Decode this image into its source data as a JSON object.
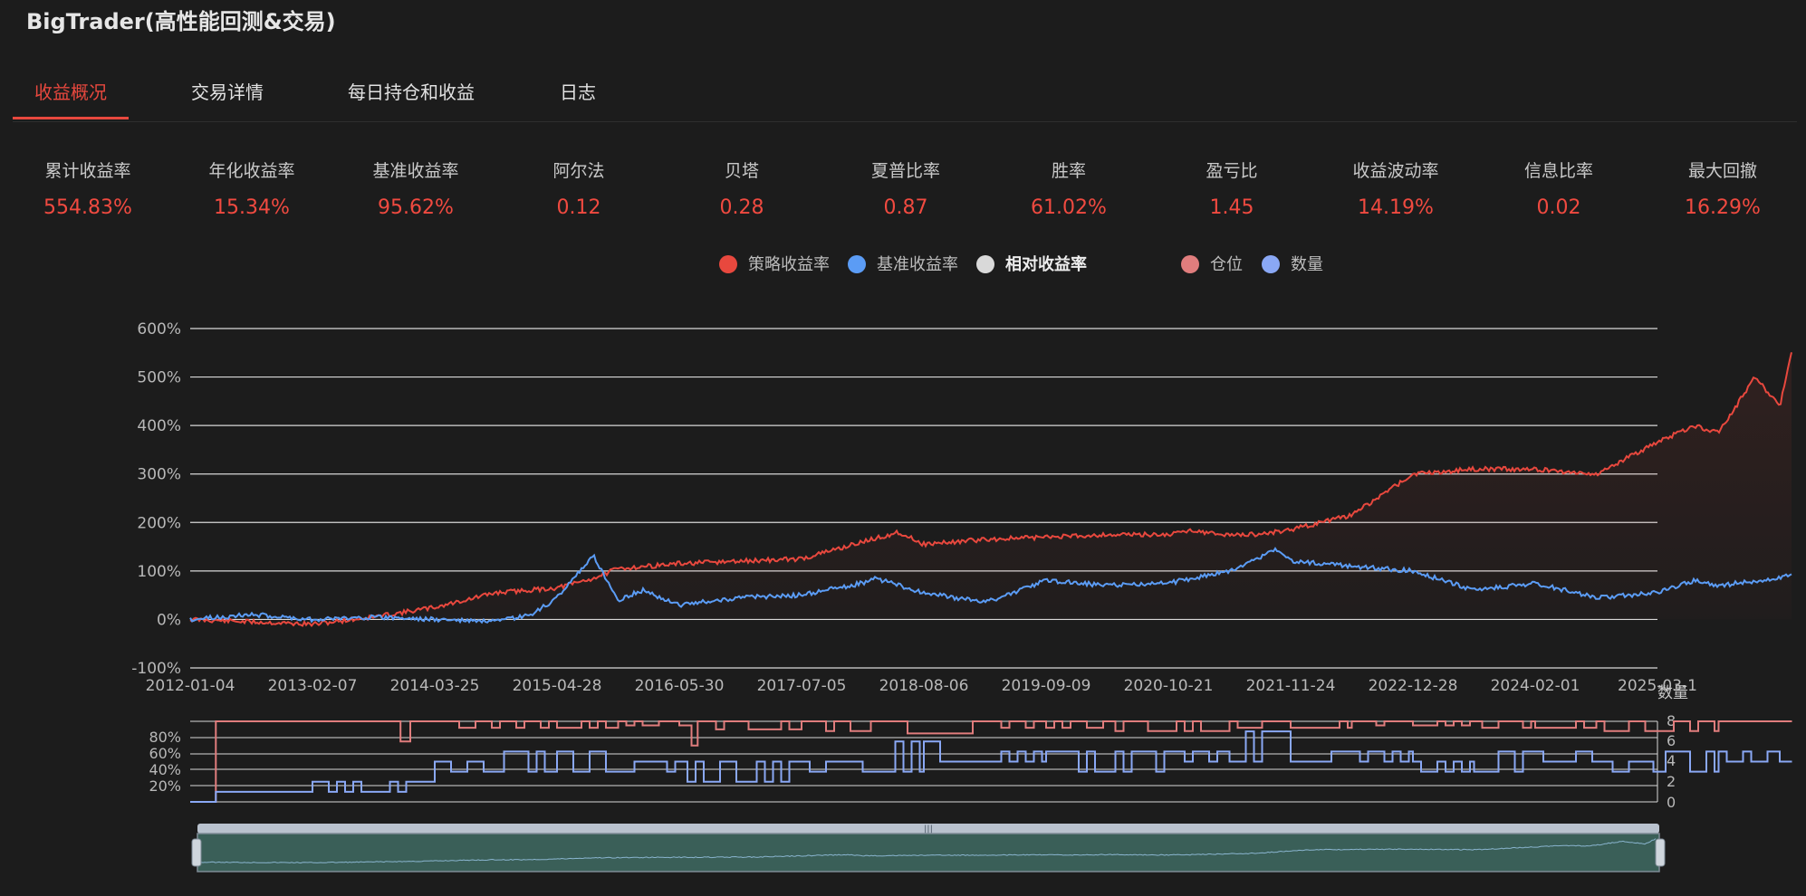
{
  "app": {
    "title": "BigTrader(高性能回测&交易)"
  },
  "tabs": [
    {
      "label": "收益概况",
      "active": true
    },
    {
      "label": "交易详情",
      "active": false
    },
    {
      "label": "每日持仓和收益",
      "active": false
    },
    {
      "label": "日志",
      "active": false
    }
  ],
  "metrics": [
    {
      "label": "累计收益率",
      "value": "554.83%"
    },
    {
      "label": "年化收益率",
      "value": "15.34%"
    },
    {
      "label": "基准收益率",
      "value": "95.62%"
    },
    {
      "label": "阿尔法",
      "value": "0.12"
    },
    {
      "label": "贝塔",
      "value": "0.28"
    },
    {
      "label": "夏普比率",
      "value": "0.87"
    },
    {
      "label": "胜率",
      "value": "61.02%"
    },
    {
      "label": "盈亏比",
      "value": "1.45"
    },
    {
      "label": "收益波动率",
      "value": "14.19%"
    },
    {
      "label": "信息比率",
      "value": "0.02"
    },
    {
      "label": "最大回撤",
      "value": "16.29%"
    }
  ],
  "legend": [
    {
      "label": "策略收益率",
      "color": "#e8483e"
    },
    {
      "label": "基准收益率",
      "color": "#5b9cf5"
    },
    {
      "label": "相对收益率",
      "color": "#d9d9d9"
    },
    {
      "label": "仓位",
      "color": "#e07d7d"
    },
    {
      "label": "数量",
      "color": "#8aa8f5"
    }
  ],
  "chart_data": [
    {
      "type": "line",
      "x_ticks": [
        "2012-01-04",
        "2013-02-07",
        "2014-03-25",
        "2015-04-28",
        "2016-05-30",
        "2017-07-05",
        "2018-08-06",
        "2019-09-09",
        "2020-10-21",
        "2021-11-24",
        "2022-12-28",
        "2024-02-01",
        "2025-03-1"
      ],
      "y_ticks": [
        "600%",
        "500%",
        "400%",
        "300%",
        "200%",
        "100%",
        "0%",
        "-100%"
      ],
      "ylim": [
        -100,
        600
      ],
      "grid": true,
      "series": [
        {
          "name": "策略收益率",
          "color": "#e8483e",
          "x": [
            0,
            0.5,
            1,
            1.5,
            2,
            2.5,
            3,
            3.3,
            3.5,
            4,
            4.5,
            5,
            5.5,
            5.8,
            6,
            6.5,
            7,
            7.5,
            8,
            8.2,
            8.4,
            8.7,
            9,
            9.5,
            10,
            10.5,
            11,
            11.5,
            12,
            12.3,
            12.5,
            12.8,
            13,
            13.1
          ],
          "values": [
            0,
            -5,
            -10,
            5,
            25,
            55,
            65,
            85,
            105,
            115,
            120,
            125,
            160,
            180,
            155,
            165,
            170,
            175,
            175,
            185,
            175,
            175,
            185,
            215,
            300,
            310,
            310,
            300,
            365,
            400,
            385,
            500,
            440,
            555
          ]
        },
        {
          "name": "基准收益率",
          "color": "#5b9cf5",
          "x": [
            0,
            0.5,
            1,
            1.5,
            2,
            2.5,
            2.8,
            3,
            3.15,
            3.3,
            3.5,
            3.7,
            4,
            4.5,
            5,
            5.5,
            5.6,
            6,
            6.5,
            7,
            7.5,
            8,
            8.5,
            8.9,
            9,
            9.3,
            9.5,
            10,
            10.5,
            11,
            11.5,
            12,
            12.3,
            12.5,
            13,
            13.1
          ],
          "values": [
            0,
            10,
            0,
            5,
            0,
            -5,
            10,
            45,
            90,
            130,
            40,
            60,
            30,
            45,
            50,
            75,
            85,
            55,
            35,
            80,
            70,
            75,
            100,
            145,
            120,
            115,
            110,
            100,
            60,
            75,
            45,
            55,
            80,
            70,
            85,
            95
          ]
        }
      ]
    },
    {
      "type": "line",
      "title": "仓位 / 数量",
      "left_ticks": [
        "80%",
        "60%",
        "40%",
        "20%"
      ],
      "right_ticks": [
        "8",
        "6",
        "4",
        "2",
        "0"
      ],
      "right_axis_label": "数量",
      "series": [
        {
          "name": "仓位",
          "color": "#e07d7d",
          "x": [
            0,
            0.2,
            0.21,
            1.7,
            1.72,
            1.8,
            2.0,
            3,
            3.5,
            4,
            4.1,
            4.15,
            4.3,
            5,
            5.5,
            5.8,
            6,
            6.5,
            7,
            7.5,
            8,
            8.5,
            9,
            9.5,
            10,
            10.5,
            11,
            11.5,
            12,
            12.5,
            13,
            13.1
          ],
          "values": [
            0,
            0,
            100,
            100,
            75,
            100,
            100,
            92,
            100,
            95,
            70,
            100,
            90,
            100,
            88,
            100,
            85,
            100,
            92,
            100,
            88,
            100,
            92,
            100,
            95,
            100,
            92,
            100,
            88,
            100,
            100,
            100
          ]
        },
        {
          "name": "数量",
          "color": "#8aa8f5",
          "x": [
            0,
            0.2,
            0.21,
            0.8,
            1,
            1.5,
            1.8,
            2,
            2.5,
            3,
            3.5,
            4,
            4.5,
            5,
            5.5,
            6,
            6.5,
            7,
            7.5,
            8,
            8.5,
            8.9,
            9,
            9.5,
            10,
            10.5,
            11,
            11.5,
            12,
            12.5,
            13,
            13.1
          ],
          "values": [
            0,
            0,
            1,
            1,
            2,
            1,
            2,
            4,
            3,
            5,
            3,
            4,
            2,
            4,
            3,
            6,
            4,
            5,
            3,
            5,
            4,
            7,
            4,
            5,
            4,
            3,
            5,
            4,
            3,
            5,
            4,
            4
          ]
        }
      ]
    }
  ]
}
